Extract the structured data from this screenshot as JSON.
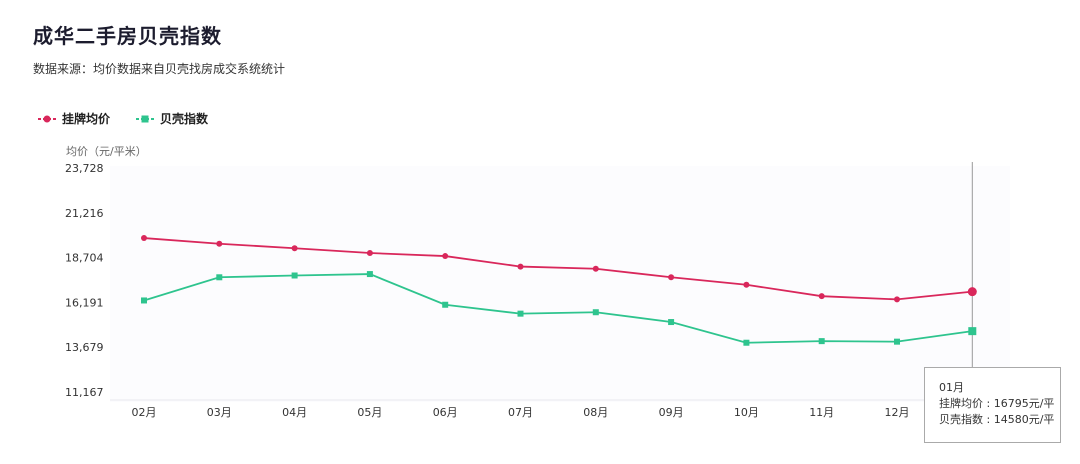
{
  "title": "成华二手房贝壳指数",
  "subtitle": "数据来源：均价数据来自贝壳找房成交系统统计",
  "legend": [
    {
      "label": "挂牌均价",
      "color": "#d9275b",
      "marker": "circle"
    },
    {
      "label": "贝壳指数",
      "color": "#2ec48e",
      "marker": "square"
    }
  ],
  "chart_data": {
    "type": "line",
    "ylabel": "均价（元/平米）",
    "ylim": [
      11167,
      23728
    ],
    "y_ticks": [
      "23,728",
      "21,216",
      "18,704",
      "16,191",
      "13,679",
      "11,167"
    ],
    "y_tick_values": [
      23728,
      21216,
      18704,
      16191,
      13679,
      11167
    ],
    "categories": [
      "02月",
      "03月",
      "04月",
      "05月",
      "06月",
      "07月",
      "08月",
      "09月",
      "10月",
      "11月",
      "12月",
      "01月"
    ],
    "x_tick_labels": [
      "02月",
      "03月",
      "04月",
      "05月",
      "06月",
      "07月",
      "08月",
      "09月",
      "10月",
      "11月",
      "12月"
    ],
    "series": [
      {
        "name": "挂牌均价",
        "color": "#d9275b",
        "marker": "circle",
        "values": [
          19800,
          19480,
          19230,
          18960,
          18790,
          18200,
          18080,
          17600,
          17180,
          16540,
          16360,
          16795
        ]
      },
      {
        "name": "贝壳指数",
        "color": "#2ec48e",
        "marker": "square",
        "values": [
          16300,
          17600,
          17700,
          17780,
          16060,
          15560,
          15640,
          15090,
          13930,
          14020,
          13990,
          14580
        ]
      }
    ],
    "grid": false,
    "legend_position": "top-left"
  },
  "tooltip": {
    "month": "01月",
    "line1": "挂牌均价 : 16795元/平",
    "line2": "贝壳指数 : 14580元/平"
  }
}
